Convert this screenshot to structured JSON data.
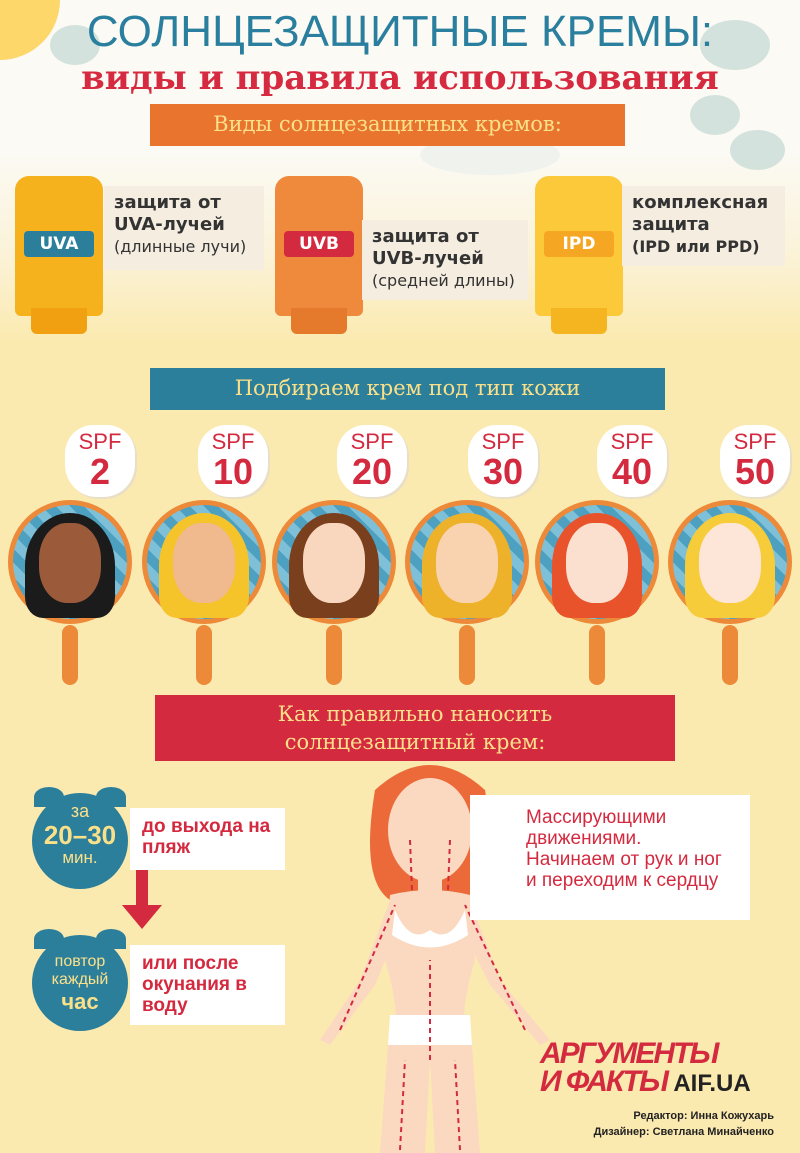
{
  "header": {
    "title_line1": "СОЛНЦЕЗАЩИТНЫЕ КРЕМЫ:",
    "title_line2": "виды и правила использования"
  },
  "types": {
    "banner": "Виды солнцезащитных кремов:",
    "items": [
      {
        "tube_label": "UVA",
        "title": "защита от UVA-лучей",
        "note": "(длинные лучи)",
        "color": "#f5b21d",
        "label_color": "#2c7f9b"
      },
      {
        "tube_label": "UVB",
        "title": "защита от UVB-лучей",
        "note": "(средней длины)",
        "color": "#ef8a3c",
        "label_color": "#d42a3f"
      },
      {
        "tube_label": "IPD",
        "title": "комплексная защита",
        "note": "(IPD или PPD)",
        "color": "#fcc93a",
        "label_color": "#f5a623"
      }
    ]
  },
  "skin": {
    "banner": "Подбираем крем под тип кожи",
    "spf_prefix": "SPF",
    "levels": [
      {
        "spf": "2"
      },
      {
        "spf": "10"
      },
      {
        "spf": "20"
      },
      {
        "spf": "30"
      },
      {
        "spf": "40"
      },
      {
        "spf": "50"
      }
    ]
  },
  "apply": {
    "banner_line1": "Как правильно наносить",
    "banner_line2": "солнцезащитный крем:",
    "clock1": {
      "top": "за",
      "mid": "20–30",
      "bottom": "мин."
    },
    "step1": "до выхода на пляж",
    "clock2": {
      "top": "повтор",
      "mid": "каждый",
      "bottom": "час"
    },
    "step2": "или после окунания в воду",
    "massage": "Массирующими движениями. Начинаем от рук и ног и переходим к сердцу"
  },
  "footer": {
    "logo_line1": "АРГУМЕНТЫ",
    "logo_line2": "И ФАКТЫ",
    "logo_site": "AIF.UA",
    "editor": "Редактор: Инна Кожухарь",
    "designer": "Дизайнер: Светлана Минайченко"
  },
  "colors": {
    "teal": "#2c7f9b",
    "red": "#d42a3f",
    "orange": "#e8742e",
    "sand": "#fbeab0",
    "banner_text": "#fbe08a"
  }
}
